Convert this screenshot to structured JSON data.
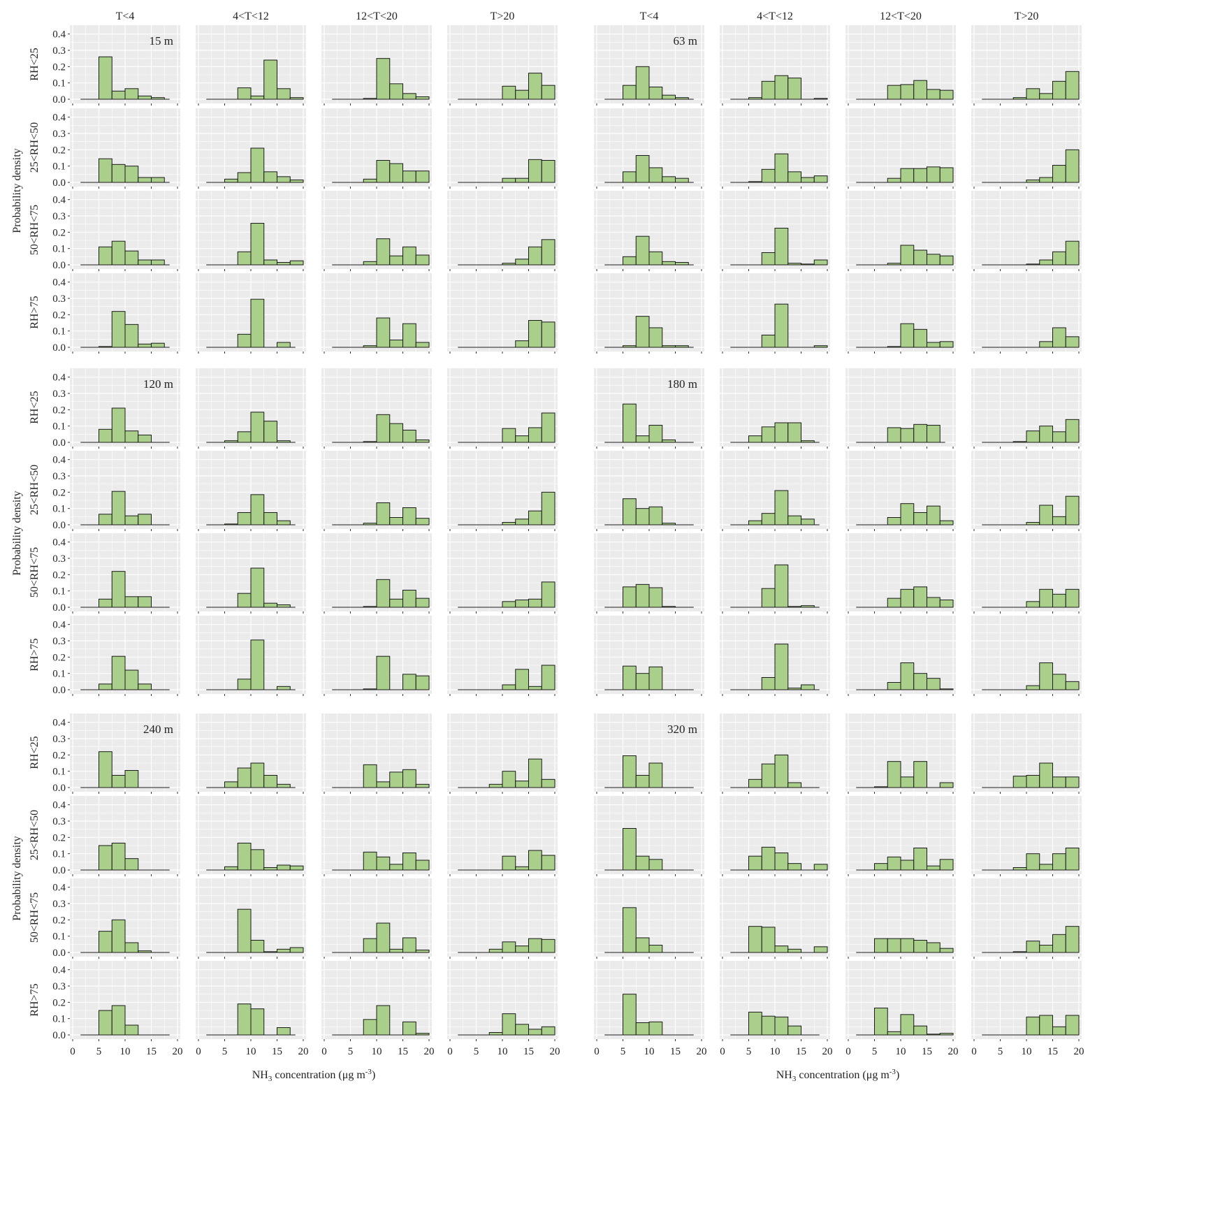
{
  "chart_data": {
    "type": "bar",
    "style": {
      "panel_background": "#ebebeb",
      "grid_color": "#ffffff",
      "bar_fill": "#a9cf8b",
      "bar_edge": "#1a1a1a"
    },
    "column_headers": [
      "T<4",
      "4<T<12",
      "12<T<20",
      "T>20"
    ],
    "row_labels": [
      "RH<25",
      "25<RH<50",
      "50<RH<75",
      "RH>75"
    ],
    "ylabel": "Probability density",
    "xlabel_main": "NH",
    "xlabel_sub": "3",
    "xlabel_rest": " concentration (μg m",
    "xlabel_sup": "-3",
    "xlabel_end": ")",
    "x_ticks": [
      "0",
      "5",
      "10",
      "15",
      "20"
    ],
    "y_ticks": [
      "0.0",
      "0.1",
      "0.2",
      "0.3",
      "0.4"
    ],
    "xlim": [
      0,
      20
    ],
    "ylim": [
      0,
      0.42
    ],
    "bin_edges": [
      0,
      2.5,
      5,
      7.5,
      10,
      12.5,
      15,
      17.5,
      20
    ],
    "blocks": [
      {
        "height_label": "15 m",
        "panels": [
          [
            [
              0,
              0,
              0.26,
              0.05,
              0.065,
              0.02,
              0.01,
              0
            ],
            [
              0,
              0,
              0,
              0.07,
              0.02,
              0.24,
              0.065,
              0.01
            ],
            [
              0,
              0,
              0,
              0.005,
              0.25,
              0.095,
              0.035,
              0.015
            ],
            [
              0,
              0,
              0,
              0,
              0.08,
              0.055,
              0.16,
              0.085
            ]
          ],
          [
            [
              0,
              0,
              0.145,
              0.11,
              0.1,
              0.03,
              0.03,
              0
            ],
            [
              0,
              0,
              0.02,
              0.06,
              0.21,
              0.065,
              0.035,
              0.015
            ],
            [
              0,
              0,
              0,
              0.02,
              0.135,
              0.115,
              0.07,
              0.07
            ],
            [
              0,
              0,
              0,
              0,
              0.025,
              0.025,
              0.14,
              0.135
            ]
          ],
          [
            [
              0,
              0,
              0.11,
              0.145,
              0.085,
              0.03,
              0.03,
              0
            ],
            [
              0,
              0,
              0,
              0.08,
              0.255,
              0.03,
              0.015,
              0.025
            ],
            [
              0,
              0,
              0,
              0.02,
              0.16,
              0.055,
              0.11,
              0.06
            ],
            [
              0,
              0,
              0,
              0,
              0.01,
              0.035,
              0.11,
              0.155
            ]
          ],
          [
            [
              0,
              0,
              0.005,
              0.22,
              0.14,
              0.02,
              0.025,
              0
            ],
            [
              0,
              0,
              0,
              0.08,
              0.295,
              0,
              0.03,
              0
            ],
            [
              0,
              0,
              0,
              0.01,
              0.18,
              0.045,
              0.145,
              0.03
            ],
            [
              0,
              0,
              0,
              0,
              0,
              0.04,
              0.165,
              0.155
            ]
          ]
        ]
      },
      {
        "height_label": "63 m",
        "panels": [
          [
            [
              0,
              0,
              0.085,
              0.2,
              0.075,
              0.025,
              0.01,
              0
            ],
            [
              0,
              0,
              0.01,
              0.11,
              0.145,
              0.13,
              0,
              0.005
            ],
            [
              0,
              0,
              0,
              0.085,
              0.09,
              0.115,
              0.06,
              0.055
            ],
            [
              0,
              0,
              0,
              0.01,
              0.065,
              0.035,
              0.11,
              0.17
            ]
          ],
          [
            [
              0,
              0,
              0.065,
              0.165,
              0.09,
              0.035,
              0.025,
              0
            ],
            [
              0,
              0,
              0.005,
              0.08,
              0.175,
              0.065,
              0.03,
              0.04
            ],
            [
              0,
              0,
              0,
              0.025,
              0.085,
              0.085,
              0.095,
              0.09
            ],
            [
              0,
              0,
              0,
              0,
              0.015,
              0.03,
              0.105,
              0.2
            ]
          ],
          [
            [
              0,
              0,
              0.05,
              0.175,
              0.08,
              0.02,
              0.015,
              0
            ],
            [
              0,
              0,
              0,
              0.075,
              0.225,
              0.01,
              0.005,
              0.03
            ],
            [
              0,
              0,
              0,
              0.01,
              0.12,
              0.09,
              0.065,
              0.055
            ],
            [
              0,
              0,
              0,
              0,
              0.005,
              0.03,
              0.08,
              0.145
            ]
          ],
          [
            [
              0,
              0,
              0.01,
              0.19,
              0.12,
              0.01,
              0.01,
              0
            ],
            [
              0,
              0,
              0,
              0.075,
              0.265,
              0,
              0,
              0.01
            ],
            [
              0,
              0,
              0,
              0.005,
              0.145,
              0.11,
              0.03,
              0.035
            ],
            [
              0,
              0,
              0,
              0,
              0,
              0.035,
              0.12,
              0.065
            ]
          ]
        ]
      },
      {
        "height_label": "120 m",
        "panels": [
          [
            [
              0,
              0,
              0.08,
              0.21,
              0.07,
              0.045,
              0,
              0
            ],
            [
              0,
              0,
              0.01,
              0.065,
              0.185,
              0.13,
              0.01,
              0
            ],
            [
              0,
              0,
              0,
              0.005,
              0.17,
              0.115,
              0.075,
              0.015
            ],
            [
              0,
              0,
              0,
              0,
              0.085,
              0.04,
              0.09,
              0.18
            ]
          ],
          [
            [
              0,
              0,
              0.065,
              0.205,
              0.055,
              0.065,
              0,
              0
            ],
            [
              0,
              0,
              0.005,
              0.075,
              0.185,
              0.075,
              0.025,
              0
            ],
            [
              0,
              0,
              0,
              0.01,
              0.135,
              0.045,
              0.105,
              0.04
            ],
            [
              0,
              0,
              0,
              0,
              0.015,
              0.035,
              0.085,
              0.2
            ]
          ],
          [
            [
              0,
              0,
              0.05,
              0.22,
              0.065,
              0.065,
              0,
              0
            ],
            [
              0,
              0,
              0,
              0.085,
              0.24,
              0.025,
              0.015,
              0
            ],
            [
              0,
              0,
              0,
              0.005,
              0.17,
              0.05,
              0.105,
              0.055
            ],
            [
              0,
              0,
              0,
              0,
              0.035,
              0.045,
              0.05,
              0.155
            ]
          ],
          [
            [
              0,
              0,
              0.035,
              0.205,
              0.12,
              0.035,
              0,
              0
            ],
            [
              0,
              0,
              0,
              0.065,
              0.305,
              0,
              0.02,
              0
            ],
            [
              0,
              0,
              0,
              0.005,
              0.205,
              0,
              0.095,
              0.085
            ],
            [
              0,
              0,
              0,
              0,
              0.03,
              0.125,
              0.02,
              0.15
            ]
          ]
        ]
      },
      {
        "height_label": "180 m",
        "panels": [
          [
            [
              0,
              0,
              0.235,
              0.04,
              0.105,
              0.015,
              0,
              0
            ],
            [
              0,
              0,
              0.04,
              0.095,
              0.12,
              0.12,
              0.01,
              0
            ],
            [
              0,
              0,
              0,
              0.09,
              0.085,
              0.11,
              0.105,
              0
            ],
            [
              0,
              0,
              0,
              0.005,
              0.07,
              0.1,
              0.065,
              0.14
            ]
          ],
          [
            [
              0,
              0,
              0.16,
              0.1,
              0.11,
              0.01,
              0,
              0
            ],
            [
              0,
              0,
              0.025,
              0.07,
              0.21,
              0.055,
              0.035,
              0
            ],
            [
              0,
              0,
              0,
              0.045,
              0.13,
              0.075,
              0.115,
              0.025
            ],
            [
              0,
              0,
              0,
              0,
              0.015,
              0.12,
              0.05,
              0.175
            ]
          ],
          [
            [
              0,
              0,
              0.125,
              0.14,
              0.12,
              0.005,
              0,
              0
            ],
            [
              0,
              0,
              0,
              0.115,
              0.26,
              0.005,
              0.01,
              0
            ],
            [
              0,
              0,
              0,
              0.055,
              0.11,
              0.125,
              0.06,
              0.045
            ],
            [
              0,
              0,
              0,
              0,
              0.035,
              0.11,
              0.08,
              0.11
            ]
          ],
          [
            [
              0,
              0,
              0.145,
              0.1,
              0.14,
              0,
              0,
              0
            ],
            [
              0,
              0,
              0,
              0.075,
              0.28,
              0.01,
              0.03,
              0
            ],
            [
              0,
              0,
              0,
              0.045,
              0.165,
              0.1,
              0.07,
              0.005
            ],
            [
              0,
              0,
              0,
              0,
              0.025,
              0.165,
              0.095,
              0.05
            ]
          ]
        ]
      },
      {
        "height_label": "240 m",
        "panels": [
          [
            [
              0,
              0,
              0.22,
              0.075,
              0.105,
              0,
              0,
              0
            ],
            [
              0,
              0,
              0.035,
              0.12,
              0.15,
              0.075,
              0.02,
              0
            ],
            [
              0,
              0,
              0,
              0.14,
              0.035,
              0.095,
              0.11,
              0.02
            ],
            [
              0,
              0,
              0,
              0.02,
              0.1,
              0.04,
              0.175,
              0.05
            ]
          ],
          [
            [
              0,
              0,
              0.15,
              0.165,
              0.07,
              0,
              0,
              0
            ],
            [
              0,
              0,
              0.02,
              0.165,
              0.125,
              0.015,
              0.03,
              0.025
            ],
            [
              0,
              0,
              0,
              0.11,
              0.08,
              0.035,
              0.105,
              0.06
            ],
            [
              0,
              0,
              0,
              0,
              0.085,
              0.02,
              0.12,
              0.09
            ]
          ],
          [
            [
              0,
              0,
              0.13,
              0.2,
              0.06,
              0.01,
              0,
              0
            ],
            [
              0,
              0,
              0,
              0.265,
              0.075,
              0.005,
              0.02,
              0.03
            ],
            [
              0,
              0,
              0,
              0.085,
              0.18,
              0.02,
              0.09,
              0.015
            ],
            [
              0,
              0,
              0,
              0.02,
              0.065,
              0.04,
              0.085,
              0.08
            ]
          ],
          [
            [
              0,
              0,
              0.15,
              0.18,
              0.06,
              0,
              0,
              0
            ],
            [
              0,
              0,
              0,
              0.19,
              0.16,
              0,
              0.045,
              0
            ],
            [
              0,
              0,
              0,
              0.095,
              0.18,
              0,
              0.08,
              0.01
            ],
            [
              0,
              0,
              0,
              0.015,
              0.13,
              0.065,
              0.035,
              0.05
            ]
          ]
        ]
      },
      {
        "height_label": "320 m",
        "panels": [
          [
            [
              0,
              0,
              0.195,
              0.075,
              0.15,
              0,
              0,
              0
            ],
            [
              0,
              0,
              0.05,
              0.145,
              0.2,
              0.03,
              0,
              0
            ],
            [
              0,
              0,
              0.005,
              0.16,
              0.065,
              0.16,
              0,
              0.03
            ],
            [
              0,
              0,
              0,
              0.07,
              0.075,
              0.15,
              0.065,
              0.065
            ]
          ],
          [
            [
              0,
              0,
              0.255,
              0.085,
              0.065,
              0,
              0,
              0
            ],
            [
              0,
              0,
              0.085,
              0.14,
              0.105,
              0.04,
              0,
              0.035
            ],
            [
              0,
              0,
              0.04,
              0.08,
              0.06,
              0.135,
              0.025,
              0.065
            ],
            [
              0,
              0,
              0,
              0.015,
              0.1,
              0.035,
              0.1,
              0.135
            ]
          ],
          [
            [
              0,
              0,
              0.275,
              0.09,
              0.045,
              0,
              0,
              0
            ],
            [
              0,
              0,
              0.16,
              0.155,
              0.04,
              0.02,
              0,
              0.035
            ],
            [
              0,
              0,
              0.085,
              0.085,
              0.085,
              0.075,
              0.06,
              0.025
            ],
            [
              0,
              0,
              0,
              0.005,
              0.07,
              0.045,
              0.11,
              0.16
            ]
          ],
          [
            [
              0,
              0,
              0.25,
              0.075,
              0.08,
              0,
              0,
              0
            ],
            [
              0,
              0,
              0.14,
              0.115,
              0.11,
              0.055,
              0,
              0
            ],
            [
              0,
              0,
              0.165,
              0.02,
              0.125,
              0.055,
              0.005,
              0.01
            ],
            [
              0,
              0,
              0,
              0,
              0.11,
              0.12,
              0.05,
              0.12
            ]
          ]
        ]
      }
    ]
  }
}
